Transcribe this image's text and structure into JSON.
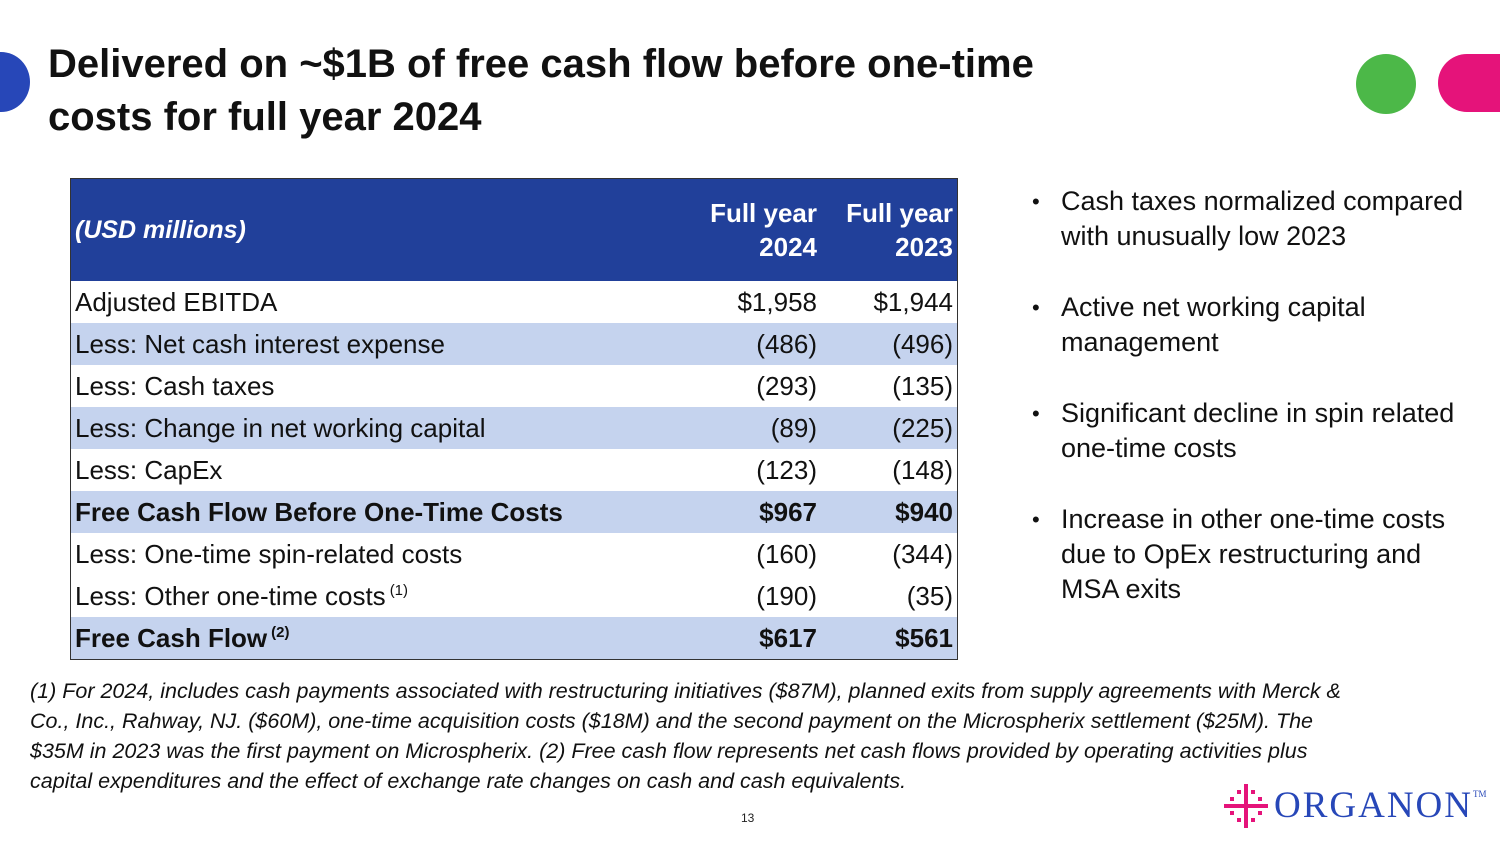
{
  "title": "Delivered on  ~$1B of free cash flow before one-time\ncosts for full year 2024",
  "table": {
    "header": {
      "label": "(USD millions)",
      "col1_line1": "Full year",
      "col1_line2": "2024",
      "col2_line1": "Full year",
      "col2_line2": "2023"
    },
    "rows": [
      {
        "label": "Adjusted EBITDA",
        "fy2024": "$1,958",
        "fy2023": "$1,944"
      },
      {
        "label": "Less: Net cash interest expense",
        "fy2024": "(486)",
        "fy2023": "(496)"
      },
      {
        "label": "Less: Cash taxes",
        "fy2024": "(293)",
        "fy2023": "(135)"
      },
      {
        "label": "Less: Change in net working capital",
        "fy2024": "(89)",
        "fy2023": "(225)"
      },
      {
        "label": "Less: CapEx",
        "fy2024": "(123)",
        "fy2023": "(148)"
      },
      {
        "label": "Free Cash Flow Before One-Time Costs",
        "fy2024": "$967",
        "fy2023": "$940"
      },
      {
        "label": "Less: One-time spin-related costs",
        "fy2024": "(160)",
        "fy2023": "(344)"
      },
      {
        "label": "Less: Other one-time costs",
        "footnote": "(1)",
        "fy2024": "(190)",
        "fy2023": "(35)"
      },
      {
        "label": "Free Cash Flow",
        "footnote": "(2)",
        "fy2024": "$617",
        "fy2023": "$561"
      }
    ]
  },
  "bullets": [
    "Cash taxes normalized compared with unusually low 2023",
    "Active net working capital management",
    "Significant decline in spin related one-time costs",
    "Increase in other one-time costs due to OpEx restructuring and MSA exits"
  ],
  "footnote": "(1) For 2024, includes cash payments associated with restructuring initiatives ($87M), planned exits from supply agreements with Merck & Co., Inc., Rahway, NJ. ($60M), one-time acquisition costs ($18M) and the second payment on the Microspherix settlement ($25M). The $35M in 2023 was the first payment on Microspherix. (2) Free cash flow represents net cash flows provided by operating activities plus capital expenditures and the effect of exchange rate changes on cash and cash equivalents.",
  "page_number": "13",
  "logo": {
    "word": "ORGANON",
    "tm": "TM"
  },
  "colors": {
    "header_blue": "#21409a",
    "row_shade": "#c5d3ee",
    "brand_blue": "#2747b8",
    "brand_green": "#4cb848",
    "brand_pink": "#e5137a"
  }
}
